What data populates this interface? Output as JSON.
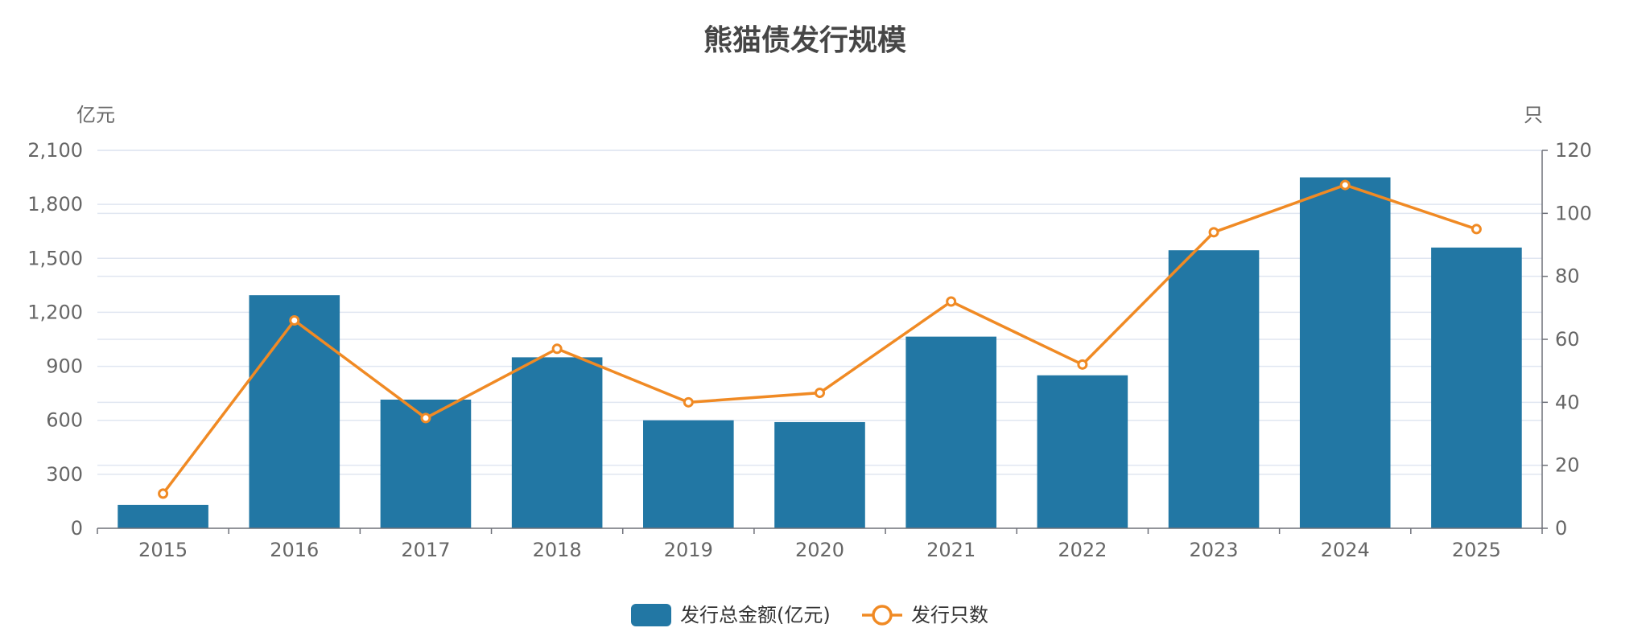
{
  "chart_data": {
    "type": "bar+line",
    "title": "熊猫债发行规模",
    "categories": [
      "2015",
      "2016",
      "2017",
      "2018",
      "2019",
      "2020",
      "2021",
      "2022",
      "2023",
      "2024",
      "2025"
    ],
    "y_left": {
      "unit": "亿元",
      "min": 0,
      "max": 2100,
      "ticks": [
        0,
        300,
        600,
        900,
        1200,
        1500,
        1800,
        2100
      ],
      "tick_labels": [
        "0",
        "300",
        "600",
        "900",
        "1,200",
        "1,500",
        "1,800",
        "2,100"
      ]
    },
    "y_right": {
      "unit": "只",
      "min": 0,
      "max": 120,
      "ticks": [
        0,
        20,
        40,
        60,
        80,
        100,
        120
      ],
      "tick_labels": [
        "0",
        "20",
        "40",
        "60",
        "80",
        "100",
        "120"
      ]
    },
    "series": [
      {
        "name": "发行总金额(亿元)",
        "type": "bar",
        "axis": "left",
        "color": "#2277a4",
        "values": [
          130,
          1295,
          715,
          950,
          600,
          590,
          1065,
          850,
          1545,
          1950,
          1560
        ]
      },
      {
        "name": "发行只数",
        "type": "line",
        "axis": "right",
        "color": "#f08a24",
        "values": [
          11,
          66,
          35,
          57,
          40,
          43,
          72,
          52,
          94,
          109,
          95
        ]
      }
    ],
    "grid": true,
    "legend_position": "bottom-center"
  }
}
